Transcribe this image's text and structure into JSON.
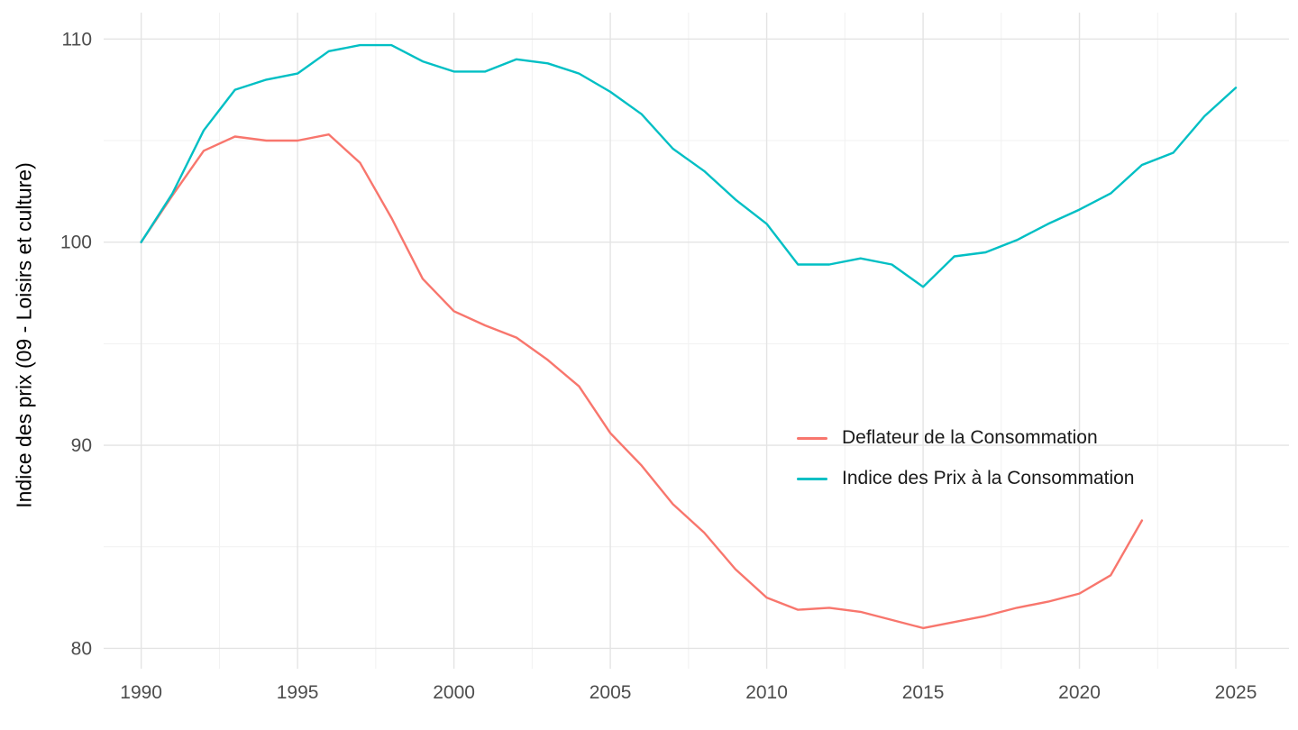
{
  "chart_data": {
    "type": "line",
    "title": "",
    "xlabel": "",
    "ylabel": "Indice des prix (09 - Loisirs et culture)",
    "xlim": [
      1988.8,
      2026.7
    ],
    "ylim": [
      79.0,
      111.3
    ],
    "x_ticks": [
      1990,
      1995,
      2000,
      2005,
      2010,
      2015,
      2020,
      2025
    ],
    "x_minor": [
      1992.5,
      1997.5,
      2002.5,
      2007.5,
      2012.5,
      2017.5,
      2022.5
    ],
    "y_ticks": [
      80,
      90,
      100,
      110
    ],
    "y_minor": [
      85,
      95,
      105
    ],
    "grid": true,
    "legend_position": "inside-right",
    "colors": {
      "deflateur": "#F8766D",
      "ipc": "#00BFC4",
      "grid_major": "#e4e4e4",
      "grid_minor": "#f1f1f1",
      "tick_text": "#4d4d4d"
    },
    "series": [
      {
        "name": "Deflateur de la Consommation",
        "color": "#F8766D",
        "x": [
          1990,
          1991,
          1992,
          1993,
          1994,
          1995,
          1996,
          1997,
          1998,
          1999,
          2000,
          2001,
          2002,
          2003,
          2004,
          2005,
          2006,
          2007,
          2008,
          2009,
          2010,
          2011,
          2012,
          2013,
          2014,
          2015,
          2016,
          2017,
          2018,
          2019,
          2020,
          2021,
          2022
        ],
        "values": [
          100,
          102.3,
          104.5,
          105.2,
          105.0,
          105.0,
          105.3,
          103.9,
          101.2,
          98.2,
          96.6,
          95.9,
          95.3,
          94.2,
          92.9,
          90.6,
          89.0,
          87.1,
          85.7,
          83.9,
          82.5,
          81.9,
          82.0,
          81.8,
          81.4,
          81.0,
          81.3,
          81.6,
          82.0,
          82.3,
          82.7,
          83.6,
          86.3
        ]
      },
      {
        "name": "Indice des Prix à la Consommation",
        "color": "#00BFC4",
        "x": [
          1990,
          1991,
          1992,
          1993,
          1994,
          1995,
          1996,
          1997,
          1998,
          1999,
          2000,
          2001,
          2002,
          2003,
          2004,
          2005,
          2006,
          2007,
          2008,
          2009,
          2010,
          2011,
          2012,
          2013,
          2014,
          2015,
          2016,
          2017,
          2018,
          2019,
          2020,
          2021,
          2022,
          2023,
          2024,
          2025
        ],
        "values": [
          100,
          102.4,
          105.5,
          107.5,
          108.0,
          108.3,
          109.4,
          109.7,
          109.7,
          108.9,
          108.4,
          108.4,
          109.0,
          108.8,
          108.3,
          107.4,
          106.3,
          104.6,
          103.5,
          102.1,
          100.9,
          98.9,
          98.9,
          99.2,
          98.9,
          97.8,
          99.3,
          99.5,
          100.1,
          100.9,
          101.6,
          102.4,
          103.8,
          104.4,
          106.2,
          107.6
        ]
      }
    ]
  }
}
